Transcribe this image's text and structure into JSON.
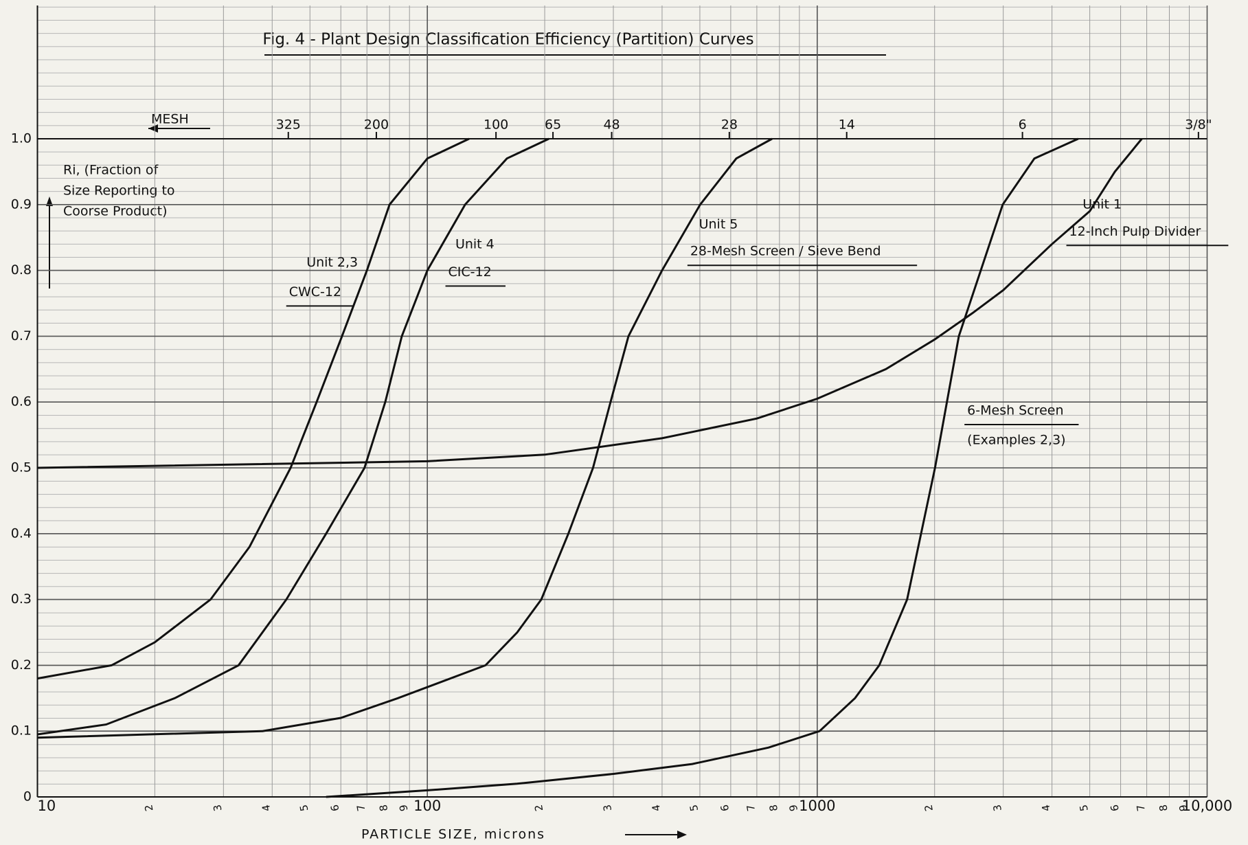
{
  "chart_data": {
    "type": "line",
    "title": "Fig. 4 - Plant Design Classification Efficiency (Partition) Curves",
    "xlabel": "PARTICLE SIZE, microns",
    "ylabel": [
      "Ri, (Fraction of",
      "Size Reporting to",
      "Coorse Product)"
    ],
    "mesh_label": "MESH",
    "log_x": true,
    "grid": true,
    "xlim": [
      10,
      10000
    ],
    "ylim": [
      0,
      1
    ],
    "xticks": [
      10,
      {
        "value": 20,
        "label": "2"
      },
      {
        "value": 30,
        "label": "3"
      },
      {
        "value": 40,
        "label": "4"
      },
      {
        "value": 50,
        "label": "5"
      },
      {
        "value": 60,
        "label": "6"
      },
      {
        "value": 70,
        "label": "7"
      },
      {
        "value": 80,
        "label": "8"
      },
      {
        "value": 90,
        "label": "9"
      },
      100,
      {
        "value": 200,
        "label": "2"
      },
      {
        "value": 300,
        "label": "3"
      },
      {
        "value": 400,
        "label": "4"
      },
      {
        "value": 500,
        "label": "5"
      },
      {
        "value": 600,
        "label": "6"
      },
      {
        "value": 700,
        "label": "7"
      },
      {
        "value": 800,
        "label": "8"
      },
      {
        "value": 900,
        "label": "9"
      },
      1000,
      {
        "value": 2000,
        "label": "2"
      },
      {
        "value": 3000,
        "label": "3"
      },
      {
        "value": 4000,
        "label": "4"
      },
      {
        "value": 5000,
        "label": "5"
      },
      {
        "value": 6000,
        "label": "6"
      },
      {
        "value": 7000,
        "label": "7"
      },
      {
        "value": 8000,
        "label": "8"
      },
      {
        "value": 9000,
        "label": "9"
      },
      {
        "value": 10000,
        "label": "10,000"
      }
    ],
    "yticks": [
      0,
      0.1,
      0.2,
      0.3,
      0.4,
      0.5,
      0.6,
      0.7,
      0.8,
      0.9,
      {
        "value": 1,
        "label": "1.0"
      }
    ],
    "mesh_ticks": [
      {
        "value": 44,
        "label": "325"
      },
      {
        "value": 74,
        "label": "200"
      },
      {
        "value": 150,
        "label": "100"
      },
      {
        "value": 210,
        "label": "65"
      },
      {
        "value": 297,
        "label": "48"
      },
      {
        "value": 595,
        "label": "28"
      },
      {
        "value": 1190,
        "label": "14"
      },
      {
        "value": 3360,
        "label": "6"
      },
      {
        "value": 9500,
        "label": "3/8\""
      }
    ],
    "series": [
      {
        "name": "CWC-12",
        "unit": "Unit 2,3",
        "color": "#111111",
        "x": [
          10,
          15.5,
          20,
          27.8,
          35,
          44.6,
          52,
          60.4,
          70,
          80,
          100,
          128
        ],
        "values": [
          0.18,
          0.2,
          0.235,
          0.3,
          0.38,
          0.5,
          0.6,
          0.7,
          0.8,
          0.9,
          0.97,
          1.0
        ]
      },
      {
        "name": "CIC-12",
        "unit": "Unit 4",
        "color": "#111111",
        "x": [
          10,
          15,
          22.5,
          32.8,
          43.5,
          55,
          69,
          78,
          86,
          100,
          125,
          160,
          205
        ],
        "values": [
          0.095,
          0.11,
          0.15,
          0.2,
          0.3,
          0.4,
          0.5,
          0.6,
          0.7,
          0.8,
          0.9,
          0.97,
          1.0
        ]
      },
      {
        "name": "28-Mesh Screen / Sieve Bend",
        "unit": "Unit 5",
        "color": "#111111",
        "x": [
          10,
          37.8,
          60,
          84,
          141,
          170,
          196,
          230,
          266,
          295,
          328,
          400,
          501,
          620,
          766
        ],
        "values": [
          0.09,
          0.1,
          0.12,
          0.15,
          0.2,
          0.25,
          0.3,
          0.4,
          0.5,
          0.6,
          0.7,
          0.8,
          0.9,
          0.97,
          1.0
        ]
      },
      {
        "name": "6-Mesh Screen",
        "note": "(Examples 2,3)",
        "color": "#111111",
        "x": [
          55,
          100,
          170,
          300,
          478,
          750,
          1014,
          1250,
          1442,
          1700,
          2005,
          2308,
          2990,
          3605,
          4670
        ],
        "values": [
          0,
          0.01,
          0.02,
          0.035,
          0.05,
          0.075,
          0.1,
          0.15,
          0.2,
          0.3,
          0.5,
          0.7,
          0.9,
          0.97,
          1.0
        ]
      },
      {
        "name": "12-Inch Pulp Divider",
        "unit": "Unit 1",
        "color": "#111111",
        "x": [
          10,
          100,
          200,
          400,
          700,
          1000,
          1500,
          2000,
          2500,
          3000,
          4000,
          5000,
          5800,
          6800
        ],
        "values": [
          0.5,
          0.51,
          0.52,
          0.545,
          0.575,
          0.605,
          0.65,
          0.695,
          0.735,
          0.77,
          0.84,
          0.89,
          0.95,
          1.0
        ]
      }
    ]
  }
}
